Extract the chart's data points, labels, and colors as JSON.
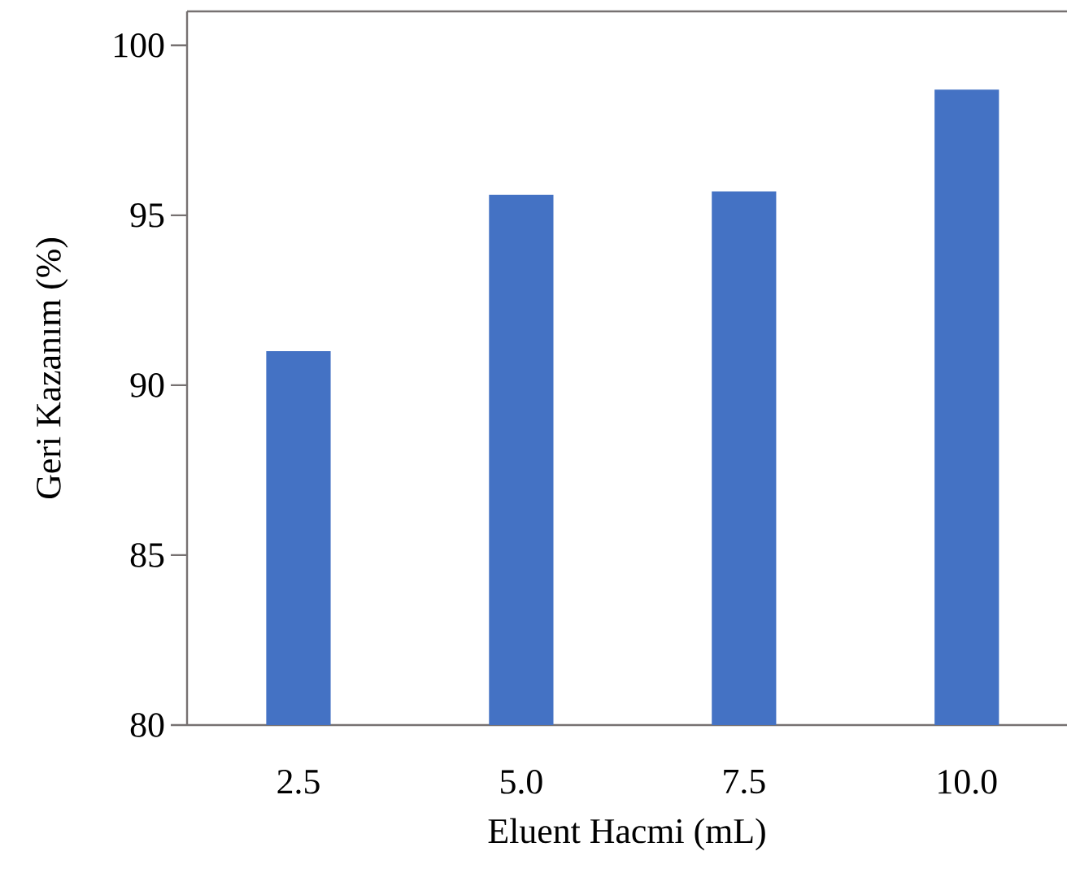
{
  "chart_data": {
    "type": "bar",
    "categories": [
      "2.5",
      "5.0",
      "7.5",
      "10.0"
    ],
    "values": [
      91.0,
      95.6,
      95.7,
      98.7
    ],
    "color": "#4472c4",
    "xlabel": "Eluent Hacmi (mL)",
    "ylabel": "Geri Kazanım (%)",
    "ylim": [
      80,
      101
    ],
    "yticks": [
      80,
      85,
      90,
      95,
      100
    ]
  }
}
